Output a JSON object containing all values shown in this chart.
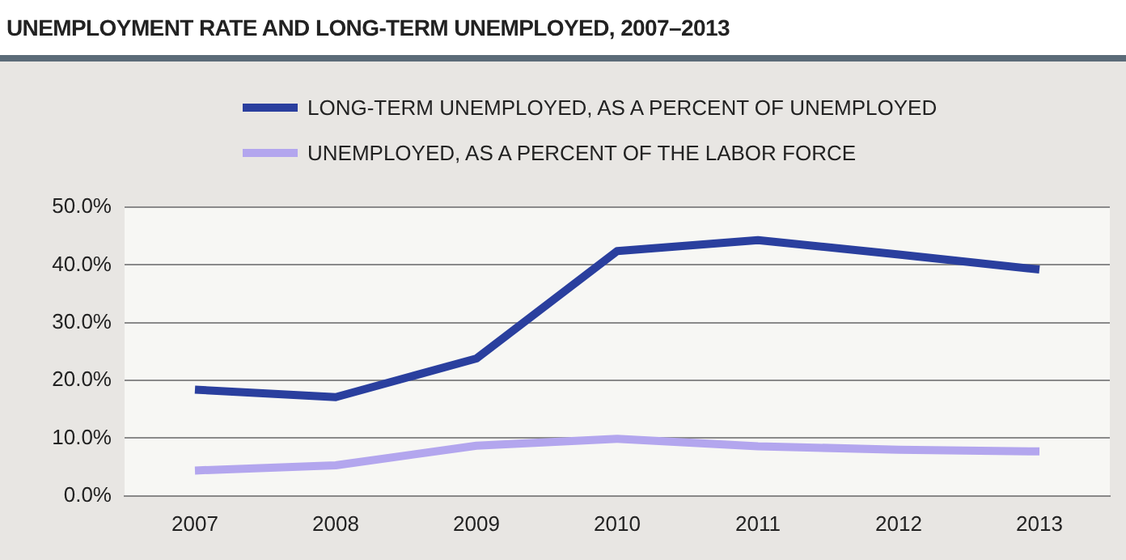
{
  "chart_data": {
    "type": "line",
    "title": "UNEMPLOYMENT RATE AND LONG-TERM UNEMPLOYED, 2007–2013",
    "categories": [
      "2007",
      "2008",
      "2009",
      "2010",
      "2011",
      "2012",
      "2013"
    ],
    "series": [
      {
        "name": "LONG-TERM UNEMPLOYED, AS A PERCENT OF UNEMPLOYED",
        "color": "#2a3f9e",
        "values": [
          18.4,
          17.1,
          23.8,
          42.4,
          44.3,
          41.8,
          39.2
        ]
      },
      {
        "name": "UNEMPLOYED, AS A PERCENT OF THE LABOR FORCE",
        "color": "#b3a6ee",
        "values": [
          4.4,
          5.3,
          8.7,
          9.9,
          8.6,
          8.0,
          7.7
        ]
      }
    ],
    "ylim": [
      0,
      50
    ],
    "yticks": [
      {
        "value": 0,
        "label": "0.0%"
      },
      {
        "value": 10,
        "label": "10.0%"
      },
      {
        "value": 20,
        "label": "20.0%"
      },
      {
        "value": 30,
        "label": "30.0%"
      },
      {
        "value": 40,
        "label": "40.0%"
      },
      {
        "value": 50,
        "label": "50.0%"
      }
    ],
    "grid": "y",
    "legend": "top",
    "marker": "none",
    "line_style": "solid"
  }
}
